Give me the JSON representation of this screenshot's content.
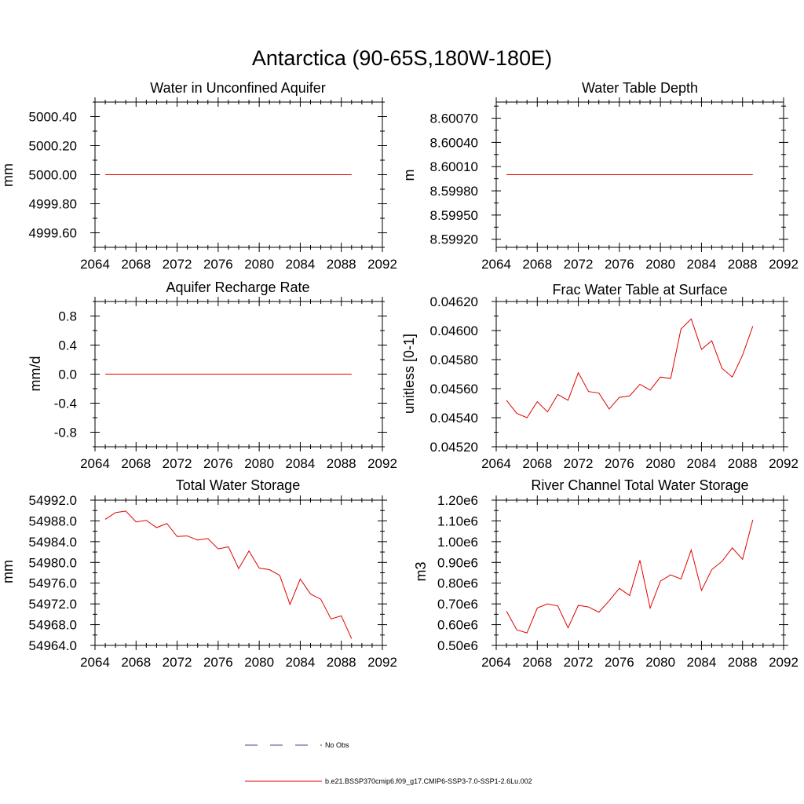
{
  "figure": {
    "title": "Antarctica (90-65S,180W-180E)"
  },
  "legend": [
    {
      "label": "No Obs",
      "style": "dashed",
      "color": "#3b4a8c"
    },
    {
      "label": "b.e21.BSSP370cmip6.f09_g17.CMIP6-SSP3-7.0-SSP1-2.6Lu.002",
      "style": "solid",
      "color": "#e00000"
    }
  ],
  "chart_data": [
    {
      "type": "line",
      "title": "Water in Unconfined Aquifer",
      "ylabel": "mm",
      "xlim": [
        2064,
        2092
      ],
      "ylim": [
        4999.5,
        5000.5
      ],
      "x_ticks": [
        2064,
        2068,
        2072,
        2076,
        2080,
        2084,
        2088,
        2092
      ],
      "x_tick_labels": [
        "2064",
        "2068",
        "2072",
        "2076",
        "2080",
        "2084",
        "2088",
        "2092"
      ],
      "y_ticks": [
        4999.6,
        4999.8,
        5000.0,
        5000.2,
        5000.4
      ],
      "y_tick_labels": [
        "4999.60",
        "4999.80",
        "5000.00",
        "5000.20",
        "5000.40"
      ],
      "x": [
        2065,
        2066,
        2067,
        2068,
        2069,
        2070,
        2071,
        2072,
        2073,
        2074,
        2075,
        2076,
        2077,
        2078,
        2079,
        2080,
        2081,
        2082,
        2083,
        2084,
        2085,
        2086,
        2087,
        2088,
        2089
      ],
      "series": [
        {
          "color": "#e00000",
          "values": [
            5000,
            5000,
            5000,
            5000,
            5000,
            5000,
            5000,
            5000,
            5000,
            5000,
            5000,
            5000,
            5000,
            5000,
            5000,
            5000,
            5000,
            5000,
            5000,
            5000,
            5000,
            5000,
            5000,
            5000,
            5000
          ]
        }
      ]
    },
    {
      "type": "line",
      "title": "Water Table Depth",
      "ylabel": "m",
      "xlim": [
        2064,
        2092
      ],
      "ylim": [
        8.5991,
        8.6009
      ],
      "x_ticks": [
        2064,
        2068,
        2072,
        2076,
        2080,
        2084,
        2088,
        2092
      ],
      "x_tick_labels": [
        "2064",
        "2068",
        "2072",
        "2076",
        "2080",
        "2084",
        "2088",
        "2092"
      ],
      "y_ticks": [
        8.5992,
        8.5995,
        8.5998,
        8.6001,
        8.6004,
        8.6007
      ],
      "y_tick_labels": [
        "8.59920",
        "8.59950",
        "8.59980",
        "8.60010",
        "8.60040",
        "8.60070"
      ],
      "x": [
        2065,
        2066,
        2067,
        2068,
        2069,
        2070,
        2071,
        2072,
        2073,
        2074,
        2075,
        2076,
        2077,
        2078,
        2079,
        2080,
        2081,
        2082,
        2083,
        2084,
        2085,
        2086,
        2087,
        2088,
        2089
      ],
      "series": [
        {
          "color": "#e00000",
          "values": [
            8.6,
            8.6,
            8.6,
            8.6,
            8.6,
            8.6,
            8.6,
            8.6,
            8.6,
            8.6,
            8.6,
            8.6,
            8.6,
            8.6,
            8.6,
            8.6,
            8.6,
            8.6,
            8.6,
            8.6,
            8.6,
            8.6,
            8.6,
            8.6,
            8.6
          ]
        }
      ]
    },
    {
      "type": "line",
      "title": "Aquifer Recharge Rate",
      "ylabel": "mm/d",
      "xlim": [
        2064,
        2092
      ],
      "ylim": [
        -1.0,
        1.0
      ],
      "x_ticks": [
        2064,
        2068,
        2072,
        2076,
        2080,
        2084,
        2088,
        2092
      ],
      "x_tick_labels": [
        "2064",
        "2068",
        "2072",
        "2076",
        "2080",
        "2084",
        "2088",
        "2092"
      ],
      "y_ticks": [
        -0.8,
        -0.4,
        0.0,
        0.4,
        0.8
      ],
      "y_tick_labels": [
        "-0.8",
        "-0.4",
        "0.0",
        "0.4",
        "0.8"
      ],
      "x": [
        2065,
        2066,
        2067,
        2068,
        2069,
        2070,
        2071,
        2072,
        2073,
        2074,
        2075,
        2076,
        2077,
        2078,
        2079,
        2080,
        2081,
        2082,
        2083,
        2084,
        2085,
        2086,
        2087,
        2088,
        2089
      ],
      "series": [
        {
          "color": "#e00000",
          "values": [
            0,
            0,
            0,
            0,
            0,
            0,
            0,
            0,
            0,
            0,
            0,
            0,
            0,
            0,
            0,
            0,
            0,
            0,
            0,
            0,
            0,
            0,
            0,
            0,
            0
          ]
        }
      ]
    },
    {
      "type": "line",
      "title": "Frac Water Table at Surface",
      "ylabel": "unitless [0-1]",
      "xlim": [
        2064,
        2092
      ],
      "ylim": [
        0.0452,
        0.0462
      ],
      "x_ticks": [
        2064,
        2068,
        2072,
        2076,
        2080,
        2084,
        2088,
        2092
      ],
      "x_tick_labels": [
        "2064",
        "2068",
        "2072",
        "2076",
        "2080",
        "2084",
        "2088",
        "2092"
      ],
      "y_ticks": [
        0.0452,
        0.0454,
        0.0456,
        0.0458,
        0.046,
        0.0462
      ],
      "y_tick_labels": [
        "0.04520",
        "0.04540",
        "0.04560",
        "0.04580",
        "0.04600",
        "0.04620"
      ],
      "x": [
        2065,
        2066,
        2067,
        2068,
        2069,
        2070,
        2071,
        2072,
        2073,
        2074,
        2075,
        2076,
        2077,
        2078,
        2079,
        2080,
        2081,
        2082,
        2083,
        2084,
        2085,
        2086,
        2087,
        2088,
        2089
      ],
      "series": [
        {
          "color": "#e00000",
          "values": [
            0.04552,
            0.04543,
            0.0454,
            0.04551,
            0.04544,
            0.04556,
            0.04552,
            0.04571,
            0.04558,
            0.04557,
            0.04546,
            0.04554,
            0.04555,
            0.04563,
            0.04559,
            0.04568,
            0.04567,
            0.04601,
            0.04608,
            0.04587,
            0.04593,
            0.04574,
            0.04568,
            0.04583,
            0.04603
          ]
        }
      ]
    },
    {
      "type": "line",
      "title": "Total Water Storage",
      "ylabel": "mm",
      "xlim": [
        2064,
        2092
      ],
      "ylim": [
        54964.0,
        54992.0
      ],
      "x_ticks": [
        2064,
        2068,
        2072,
        2076,
        2080,
        2084,
        2088,
        2092
      ],
      "x_tick_labels": [
        "2064",
        "2068",
        "2072",
        "2076",
        "2080",
        "2084",
        "2088",
        "2092"
      ],
      "y_ticks": [
        54964,
        54968,
        54972,
        54976,
        54980,
        54984,
        54988,
        54992
      ],
      "y_tick_labels": [
        "54964.0",
        "54968.0",
        "54972.0",
        "54976.0",
        "54980.0",
        "54984.0",
        "54988.0",
        "54992.0"
      ],
      "x": [
        2065,
        2066,
        2067,
        2068,
        2069,
        2070,
        2071,
        2072,
        2073,
        2074,
        2075,
        2076,
        2077,
        2078,
        2079,
        2080,
        2081,
        2082,
        2083,
        2084,
        2085,
        2086,
        2087,
        2088,
        2089
      ],
      "series": [
        {
          "color": "#e00000",
          "values": [
            54988.3,
            54989.6,
            54989.9,
            54987.8,
            54988.1,
            54986.7,
            54987.5,
            54985.0,
            54985.1,
            54984.3,
            54984.6,
            54982.6,
            54983.0,
            54978.8,
            54982.2,
            54978.9,
            54978.6,
            54977.5,
            54971.9,
            54976.8,
            54973.9,
            54972.9,
            54969.1,
            54969.7,
            54965.3
          ]
        }
      ]
    },
    {
      "type": "line",
      "title": "River Channel Total Water Storage",
      "ylabel": "m3",
      "xlim": [
        2064,
        2092
      ],
      "ylim": [
        500000,
        1200000
      ],
      "x_ticks": [
        2064,
        2068,
        2072,
        2076,
        2080,
        2084,
        2088,
        2092
      ],
      "x_tick_labels": [
        "2064",
        "2068",
        "2072",
        "2076",
        "2080",
        "2084",
        "2088",
        "2092"
      ],
      "y_ticks": [
        500000,
        600000,
        700000,
        800000,
        900000,
        1000000,
        1100000,
        1200000
      ],
      "y_tick_labels": [
        "0.50e6",
        "0.60e6",
        "0.70e6",
        "0.80e6",
        "0.90e6",
        "1.00e6",
        "1.10e6",
        "1.20e6"
      ],
      "x": [
        2065,
        2066,
        2067,
        2068,
        2069,
        2070,
        2071,
        2072,
        2073,
        2074,
        2075,
        2076,
        2077,
        2078,
        2079,
        2080,
        2081,
        2082,
        2083,
        2084,
        2085,
        2086,
        2087,
        2088,
        2089
      ],
      "series": [
        {
          "color": "#e00000",
          "values": [
            665000,
            575000,
            560000,
            680000,
            700000,
            690000,
            585000,
            693000,
            685000,
            660000,
            715000,
            775000,
            740000,
            910000,
            680000,
            810000,
            840000,
            820000,
            960000,
            765000,
            865000,
            905000,
            970000,
            915000,
            1105000
          ]
        }
      ]
    }
  ]
}
